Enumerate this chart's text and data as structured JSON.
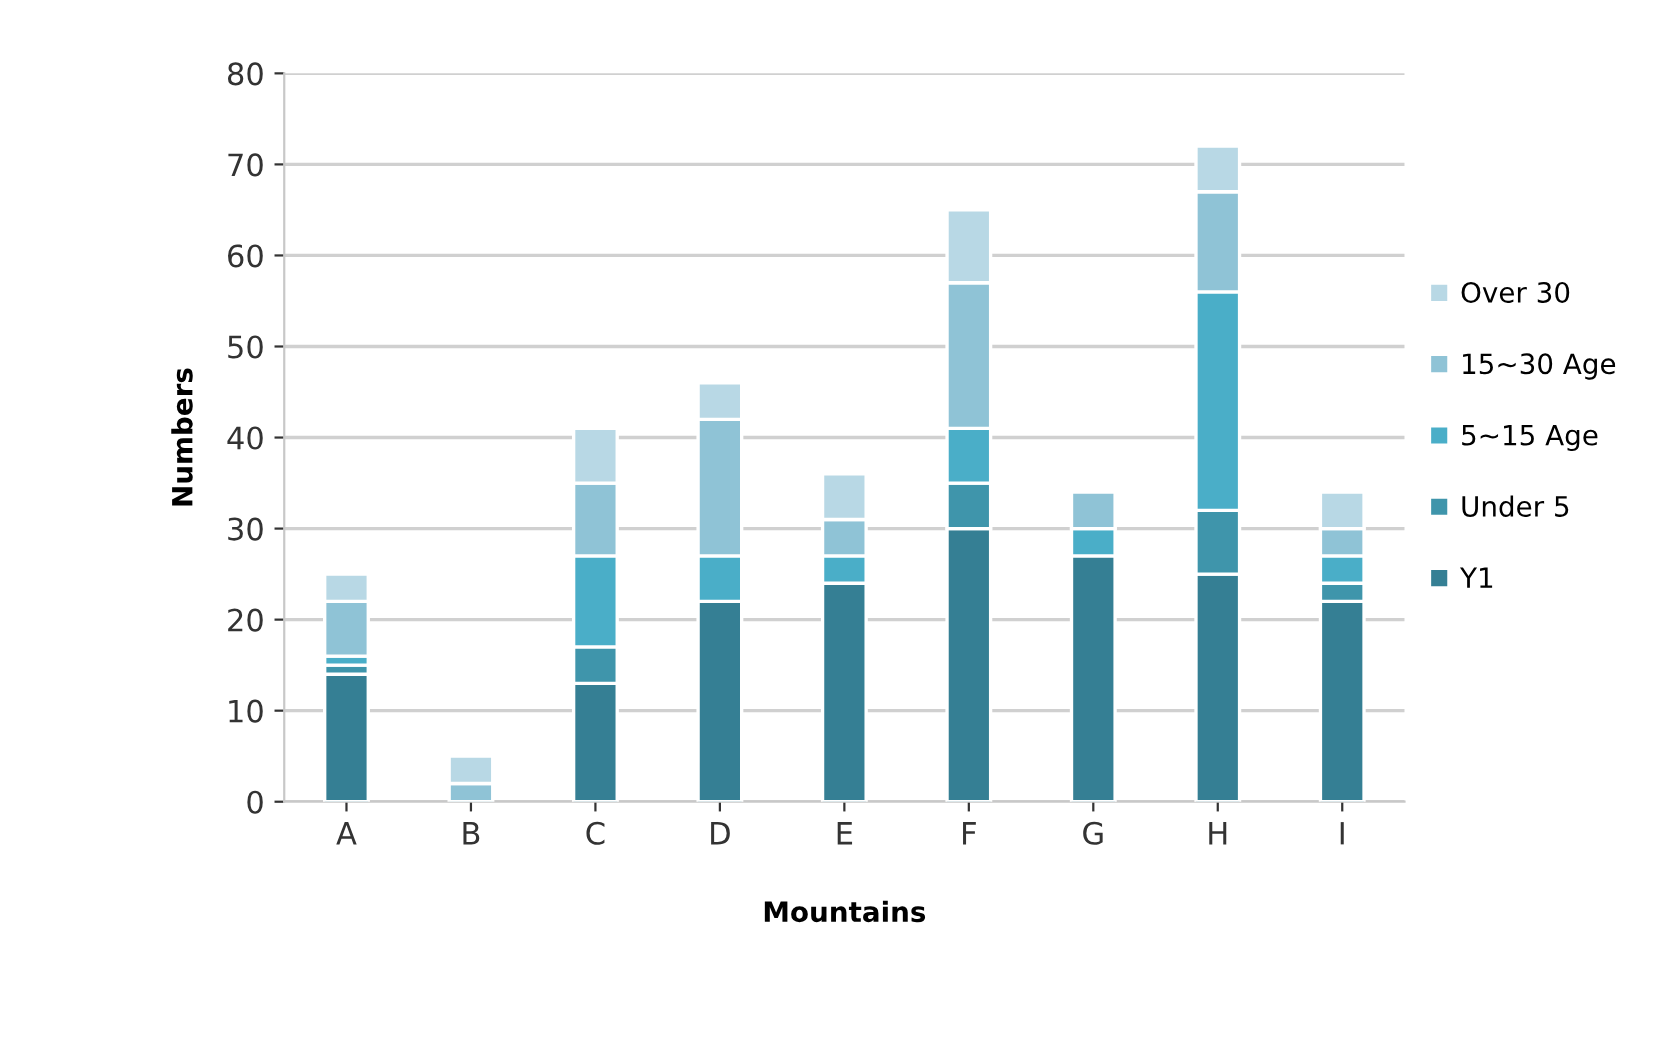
{
  "chart_data": {
    "type": "bar",
    "stacked": true,
    "xlabel": "Mountains",
    "ylabel": "Numbers",
    "categories": [
      "A",
      "B",
      "C",
      "D",
      "E",
      "F",
      "G",
      "H",
      "I"
    ],
    "series": [
      {
        "name": "Y1",
        "color": "#357f94",
        "values": [
          14,
          0,
          13,
          22,
          24,
          30,
          27,
          25,
          22
        ]
      },
      {
        "name": "Under 5",
        "color": "#3f95ab",
        "values": [
          1,
          0,
          4,
          0,
          0,
          5,
          0,
          7,
          2
        ]
      },
      {
        "name": "5~15 Age",
        "color": "#4aaec8",
        "values": [
          1,
          0,
          10,
          5,
          3,
          6,
          3,
          24,
          3
        ]
      },
      {
        "name": "15~30 Age",
        "color": "#8fc3d6",
        "values": [
          6,
          2,
          8,
          15,
          4,
          16,
          4,
          11,
          3
        ]
      },
      {
        "name": "Over 30",
        "color": "#b8d8e5",
        "values": [
          3,
          3,
          6,
          4,
          5,
          8,
          0,
          5,
          4
        ]
      }
    ],
    "ylim": [
      0,
      80
    ],
    "yticks": [
      0,
      10,
      20,
      30,
      40,
      50,
      60,
      70,
      80
    ],
    "grid": "y",
    "legend": "right"
  }
}
